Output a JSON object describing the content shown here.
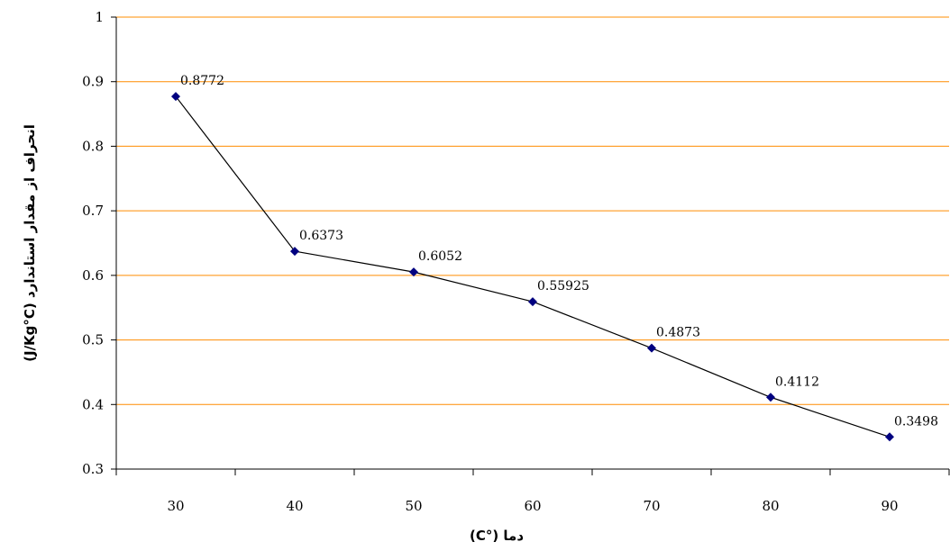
{
  "chart_data": {
    "type": "line",
    "title": "",
    "xlabel": "دما (°C)",
    "ylabel": "انحراف از مقدار استاندارد (J/Kg°C)",
    "x": [
      30,
      40,
      50,
      60,
      70,
      80,
      90
    ],
    "x_tick_labels": [
      "30",
      "40",
      "50",
      "60",
      "70",
      "80",
      "90"
    ],
    "y_tick_labels": [
      "0.3",
      "0.4",
      "0.5",
      "0.6",
      "0.7",
      "0.8",
      "0.9",
      "1"
    ],
    "ylim": [
      0.3,
      1.0
    ],
    "grid": "horizontal",
    "legend": "none",
    "series": [
      {
        "values": [
          0.8772,
          0.6373,
          0.6052,
          0.55925,
          0.4873,
          0.4112,
          0.3498
        ],
        "data_labels": [
          "0.8772",
          "0.6373",
          "0.6052",
          "0.55925",
          "0.4873",
          "0.4112",
          "0.3498"
        ],
        "line_color": "#000000",
        "marker_color": "#000080"
      }
    ],
    "grid_color": "#FF8C00"
  }
}
